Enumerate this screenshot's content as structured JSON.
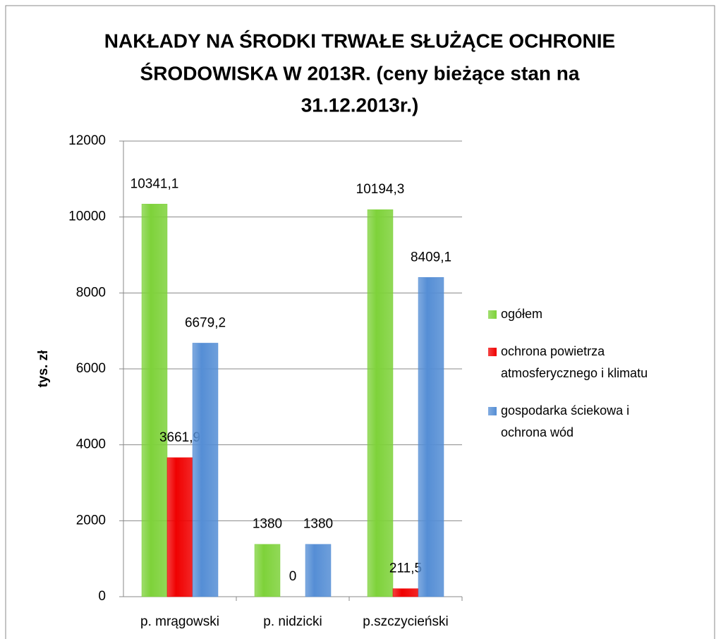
{
  "chart_data": {
    "type": "bar",
    "title": [
      "NAKŁADY NA ŚRODKI TRWAŁE SŁUŻĄCE OCHRONIE",
      "ŚRODOWISKA W 2013R. (ceny bieżące stan na",
      "31.12.2013r.)"
    ],
    "y_label": "tys. zł",
    "categories": [
      "p. mrągowski",
      "p. nidzicki",
      "p.szczycieński"
    ],
    "series": [
      {
        "name": "ogółem",
        "color": "#7ed23a",
        "values": [
          10341.1,
          1380,
          10194.3
        ],
        "value_labels": [
          "10341,1",
          "1380",
          "10194,3"
        ]
      },
      {
        "name": "ochrona powietrza atmosferycznego i klimatu",
        "color": "#f00000",
        "values": [
          3661.9,
          0,
          211.5
        ],
        "value_labels": [
          "3661,9",
          "0",
          "211,5"
        ]
      },
      {
        "name": "gospodarka ściekowa i ochrona wód",
        "color": "#558ed5",
        "values": [
          6679.2,
          1380,
          8409.1
        ],
        "value_labels": [
          "6679,2",
          "1380",
          "8409,1"
        ]
      }
    ],
    "ylim": [
      0,
      12000
    ],
    "yticks": [
      0,
      2000,
      4000,
      6000,
      8000,
      10000,
      12000
    ],
    "grid": true,
    "legend": "right"
  }
}
